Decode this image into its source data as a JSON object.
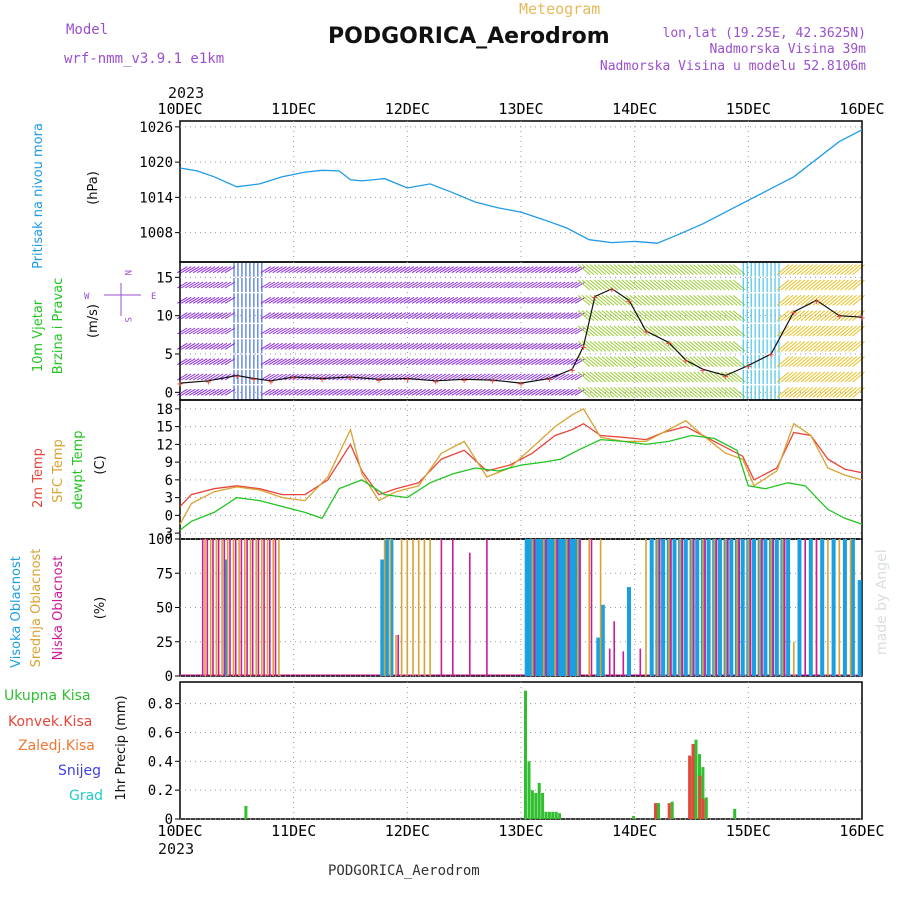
{
  "header": {
    "model_label": "Model",
    "model_name": "wrf-nmm_v3.9.1 e1km",
    "meteogram_label": "Meteogram",
    "station_title": "PODGORICA_Aerodrom",
    "lonlat": "lon,lat (19.25E, 42.3625N)",
    "elevation": "Nadmorska Visina 39m",
    "model_elevation": "Nadmorska Visina u modelu 52.8106m",
    "footer_station": "PODGORICA_Aerodrom",
    "watermark": "made by Angel",
    "year_top": "2023",
    "year_bottom": "2023"
  },
  "colors": {
    "pressure": "#1f9be6",
    "temp2m": "#e8463c",
    "sfc_temp": "#d9a233",
    "dewpoint": "#22c422",
    "high_cloud": "#1a9fe0",
    "mid_cloud": "#d9a233",
    "low_cloud": "#cc1a99",
    "total_precip": "#2fbf2f",
    "conv_precip": "#e8463c",
    "grid_precip": "#ee7733",
    "snow": "#4040e0",
    "graupel": "#22cccc",
    "wind_label": "#22c422",
    "purple_text": "#9b4fcf"
  },
  "chart_data": [
    {
      "type": "line",
      "panel": "pressure",
      "x_ticks": [
        "10DEC",
        "11DEC",
        "12DEC",
        "13DEC",
        "14DEC",
        "15DEC",
        "16DEC"
      ],
      "ylabel": [
        "Pritisak na nivou mora",
        "(hPa)"
      ],
      "ylim": [
        1003,
        1027
      ],
      "y_ticks": [
        1008,
        1014,
        1020,
        1026
      ],
      "grid": true,
      "series": [
        {
          "key": "pressure",
          "x": [
            0,
            0.15,
            0.3,
            0.5,
            0.7,
            0.9,
            1.1,
            1.25,
            1.4,
            1.5,
            1.6,
            1.8,
            2.0,
            2.2,
            2.4,
            2.6,
            2.8,
            3.0,
            3.2,
            3.4,
            3.6,
            3.8,
            4.0,
            4.2,
            4.4,
            4.6,
            4.8,
            5.0,
            5.2,
            5.4,
            5.6,
            5.8,
            6.0
          ],
          "values": [
            1019,
            1018.5,
            1017.5,
            1015.8,
            1016.3,
            1017.5,
            1018.3,
            1018.6,
            1018.5,
            1017.0,
            1016.8,
            1017.2,
            1015.6,
            1016.3,
            1014.8,
            1013.2,
            1012.2,
            1011.5,
            1010.2,
            1008.8,
            1006.8,
            1006.3,
            1006.5,
            1006.2,
            1007.8,
            1009.5,
            1011.5,
            1013.5,
            1015.5,
            1017.5,
            1020.5,
            1023.5,
            1025.5
          ]
        }
      ]
    },
    {
      "type": "scatter",
      "panel": "wind",
      "ylabel": [
        "10m Vjetar",
        "Brzina i Pravac",
        "(m/s)"
      ],
      "compass": {
        "n": "N",
        "s": "S",
        "e": "E",
        "w": "W"
      },
      "ylim": [
        -1,
        17
      ],
      "y_ticks": [
        0,
        5,
        10,
        15
      ],
      "grid": true,
      "series": [
        {
          "name": "Wind speed",
          "key": "wind_speed",
          "x": [
            0,
            0.25,
            0.5,
            0.65,
            0.8,
            1.0,
            1.25,
            1.5,
            1.75,
            2.0,
            2.25,
            2.5,
            2.75,
            3.0,
            3.25,
            3.45,
            3.55,
            3.65,
            3.8,
            3.95,
            4.1,
            4.3,
            4.45,
            4.6,
            4.8,
            5.0,
            5.2,
            5.4,
            5.6,
            5.8,
            6.0
          ],
          "values": [
            1.2,
            1.5,
            2.2,
            1.8,
            1.5,
            2.0,
            1.8,
            2.0,
            1.7,
            1.8,
            1.5,
            1.7,
            1.6,
            1.2,
            1.8,
            3.0,
            6.0,
            12.5,
            13.5,
            12.0,
            8.0,
            6.5,
            4.2,
            3.0,
            2.2,
            3.5,
            5.0,
            10.5,
            12.0,
            10.0,
            9.8
          ]
        }
      ]
    },
    {
      "type": "line",
      "panel": "temperature",
      "ylabel": [
        "2m Temp",
        "SFC Temp",
        "dewpt Temp",
        "(C)"
      ],
      "ylim": [
        -4,
        19.5
      ],
      "y_ticks": [
        -3,
        0,
        3,
        6,
        9,
        12,
        15,
        18
      ],
      "grid": true,
      "series": [
        {
          "name": "2m Temp",
          "key": "temp2m",
          "x": [
            0,
            0.1,
            0.3,
            0.5,
            0.7,
            0.9,
            1.1,
            1.3,
            1.5,
            1.6,
            1.75,
            1.9,
            2.1,
            2.3,
            2.5,
            2.7,
            2.9,
            3.1,
            3.3,
            3.45,
            3.55,
            3.7,
            3.9,
            4.1,
            4.25,
            4.45,
            4.6,
            4.8,
            4.95,
            5.05,
            5.25,
            5.4,
            5.55,
            5.7,
            5.85,
            6.0
          ],
          "values": [
            1.5,
            3.5,
            4.5,
            5.0,
            4.5,
            3.5,
            3.5,
            6.0,
            12.0,
            7.5,
            3.5,
            4.5,
            5.5,
            9.5,
            11.0,
            7.5,
            8.5,
            10.5,
            13.5,
            14.5,
            15.5,
            13.5,
            13.2,
            12.8,
            14.0,
            15.0,
            13.5,
            11.5,
            10.0,
            6.0,
            8.0,
            14.0,
            13.5,
            9.5,
            7.8,
            7.2
          ]
        },
        {
          "name": "SFC Temp",
          "key": "sfc_temp",
          "x": [
            0,
            0.1,
            0.3,
            0.5,
            0.7,
            0.9,
            1.1,
            1.3,
            1.5,
            1.6,
            1.75,
            1.9,
            2.1,
            2.3,
            2.5,
            2.7,
            2.9,
            3.1,
            3.3,
            3.45,
            3.55,
            3.7,
            3.9,
            4.1,
            4.25,
            4.45,
            4.6,
            4.8,
            4.95,
            5.05,
            5.25,
            5.4,
            5.55,
            5.7,
            5.85,
            6.0
          ],
          "values": [
            -1.5,
            2.0,
            4.0,
            4.8,
            4.3,
            3.0,
            2.5,
            6.5,
            14.5,
            7.0,
            2.5,
            4.0,
            5.0,
            10.5,
            12.5,
            6.5,
            8.0,
            11.5,
            15.0,
            17.0,
            18.0,
            13.2,
            12.5,
            12.5,
            14.0,
            16.0,
            13.5,
            10.5,
            9.5,
            5.0,
            7.5,
            15.5,
            13.5,
            8.0,
            6.8,
            6.0
          ]
        },
        {
          "name": "dewpt Temp",
          "key": "dewpoint",
          "x": [
            0,
            0.1,
            0.3,
            0.5,
            0.7,
            0.9,
            1.1,
            1.25,
            1.4,
            1.6,
            1.8,
            2.0,
            2.2,
            2.4,
            2.6,
            2.8,
            3.0,
            3.2,
            3.35,
            3.5,
            3.7,
            3.9,
            4.1,
            4.3,
            4.5,
            4.7,
            4.9,
            5.0,
            5.15,
            5.35,
            5.5,
            5.7,
            5.85,
            6.0
          ],
          "values": [
            -2.5,
            -1.0,
            0.5,
            3.0,
            2.5,
            1.5,
            0.5,
            -0.5,
            4.5,
            6.0,
            3.5,
            3.0,
            5.5,
            7.0,
            8.0,
            7.5,
            8.5,
            9.0,
            9.5,
            11.0,
            12.8,
            12.5,
            12.0,
            12.5,
            13.5,
            13.0,
            11.0,
            5.0,
            4.5,
            5.5,
            5.0,
            1.0,
            -0.5,
            -1.5
          ]
        }
      ]
    },
    {
      "type": "bar",
      "panel": "clouds",
      "ylabel": [
        "Visoka Oblacnost",
        "Srednja Oblacnost",
        "Niska Oblacnost",
        "(%)"
      ],
      "ylim": [
        0,
        100
      ],
      "y_ticks": [
        0,
        25,
        50,
        75,
        100
      ],
      "grid": true,
      "series": [
        {
          "name": "Visoka Oblacnost",
          "key": "high_cloud",
          "x": [
            0.4,
            1.78,
            1.82,
            1.86,
            3.05,
            3.08,
            3.11,
            3.14,
            3.17,
            3.2,
            3.23,
            3.26,
            3.29,
            3.32,
            3.35,
            3.38,
            3.41,
            3.44,
            3.47,
            3.5,
            3.68,
            3.72,
            3.95,
            4.15,
            4.2,
            4.25,
            4.3,
            4.35,
            4.4,
            4.45,
            4.5,
            4.55,
            4.6,
            4.65,
            4.7,
            4.75,
            4.8,
            4.85,
            4.9,
            4.95,
            5.0,
            5.05,
            5.1,
            5.15,
            5.2,
            5.25,
            5.3,
            5.35,
            5.45,
            5.55,
            5.65,
            5.75,
            5.85,
            5.92,
            5.98
          ],
          "values": [
            85,
            85,
            100,
            100,
            100,
            100,
            100,
            100,
            100,
            100,
            100,
            100,
            100,
            100,
            100,
            100,
            100,
            100,
            100,
            100,
            28,
            52,
            65,
            100,
            100,
            100,
            100,
            100,
            100,
            100,
            100,
            100,
            100,
            100,
            100,
            100,
            100,
            100,
            100,
            100,
            100,
            100,
            100,
            100,
            100,
            100,
            100,
            100,
            100,
            100,
            100,
            100,
            100,
            100,
            70
          ]
        },
        {
          "name": "Srednja Oblacnost",
          "key": "mid_cloud",
          "x": [
            0.22,
            0.27,
            0.32,
            0.37,
            0.42,
            0.47,
            0.52,
            0.57,
            0.62,
            0.67,
            0.72,
            0.77,
            0.82,
            0.87,
            1.8,
            1.85,
            1.9,
            1.95,
            2.0,
            2.05,
            2.1,
            2.15,
            2.2,
            3.1,
            3.2,
            3.3,
            3.4,
            3.5,
            3.6,
            3.7,
            4.1,
            4.2,
            4.3,
            4.4,
            4.5,
            4.6,
            4.7,
            4.8,
            4.9,
            5.0,
            5.1,
            5.2,
            5.3,
            5.4,
            5.5,
            5.6,
            5.7,
            5.8,
            5.9
          ],
          "values": [
            100,
            100,
            100,
            100,
            100,
            100,
            100,
            100,
            100,
            100,
            100,
            100,
            100,
            100,
            100,
            100,
            30,
            100,
            100,
            100,
            100,
            100,
            100,
            100,
            100,
            100,
            100,
            100,
            100,
            100,
            100,
            100,
            100,
            100,
            100,
            100,
            100,
            100,
            100,
            100,
            100,
            100,
            100,
            25,
            100,
            100,
            100,
            100,
            100
          ]
        },
        {
          "name": "Niska Oblacnost",
          "key": "low_cloud",
          "x": [
            0.2,
            0.24,
            0.29,
            0.34,
            0.39,
            0.44,
            0.49,
            0.54,
            0.59,
            0.64,
            0.69,
            0.74,
            0.79,
            0.84,
            1.92,
            2.3,
            2.4,
            2.55,
            2.7,
            3.12,
            3.22,
            3.32,
            3.42,
            3.52,
            3.62,
            3.78,
            3.82,
            3.9,
            4.05,
            4.22,
            4.32,
            4.42,
            4.52,
            4.62,
            4.72,
            4.82,
            4.92,
            5.02,
            5.12,
            5.22,
            5.32,
            5.5,
            5.6
          ],
          "values": [
            100,
            100,
            100,
            100,
            100,
            100,
            100,
            100,
            100,
            100,
            100,
            100,
            100,
            100,
            30,
            100,
            100,
            90,
            100,
            100,
            100,
            100,
            100,
            100,
            100,
            20,
            40,
            18,
            20,
            100,
            100,
            100,
            100,
            100,
            100,
            100,
            100,
            100,
            100,
            100,
            100,
            100,
            100
          ]
        }
      ]
    },
    {
      "type": "bar",
      "panel": "precip",
      "ylabel": [
        "1hr Precip (mm)"
      ],
      "legend": [
        "Ukupna Kisa",
        "Konvek.Kisa",
        "Zaledj.Kisa",
        "Snijeg",
        "Grad"
      ],
      "ylim": [
        0,
        0.95
      ],
      "y_ticks": [
        0,
        0.2,
        0.4,
        0.6,
        0.8
      ],
      "grid": true,
      "series": [
        {
          "name": "Ukupna Kisa",
          "key": "total_precip",
          "x": [
            0.58,
            3.04,
            3.07,
            3.1,
            3.13,
            3.16,
            3.19,
            3.22,
            3.25,
            3.28,
            3.31,
            3.34,
            3.99,
            4.21,
            4.33,
            4.51,
            4.54,
            4.57,
            4.6,
            4.63,
            4.88
          ],
          "values": [
            0.09,
            0.89,
            0.4,
            0.2,
            0.18,
            0.25,
            0.18,
            0.05,
            0.05,
            0.05,
            0.05,
            0.04,
            0.02,
            0.11,
            0.12,
            0.43,
            0.55,
            0.45,
            0.36,
            0.15,
            0.07
          ]
        },
        {
          "name": "Konvek.Kisa",
          "key": "conv_precip",
          "x": [
            4.21,
            4.33,
            4.51,
            4.54,
            4.6,
            4.63
          ],
          "values": [
            0.11,
            0.11,
            0.44,
            0.52,
            0.3,
            0.14
          ]
        }
      ]
    }
  ]
}
